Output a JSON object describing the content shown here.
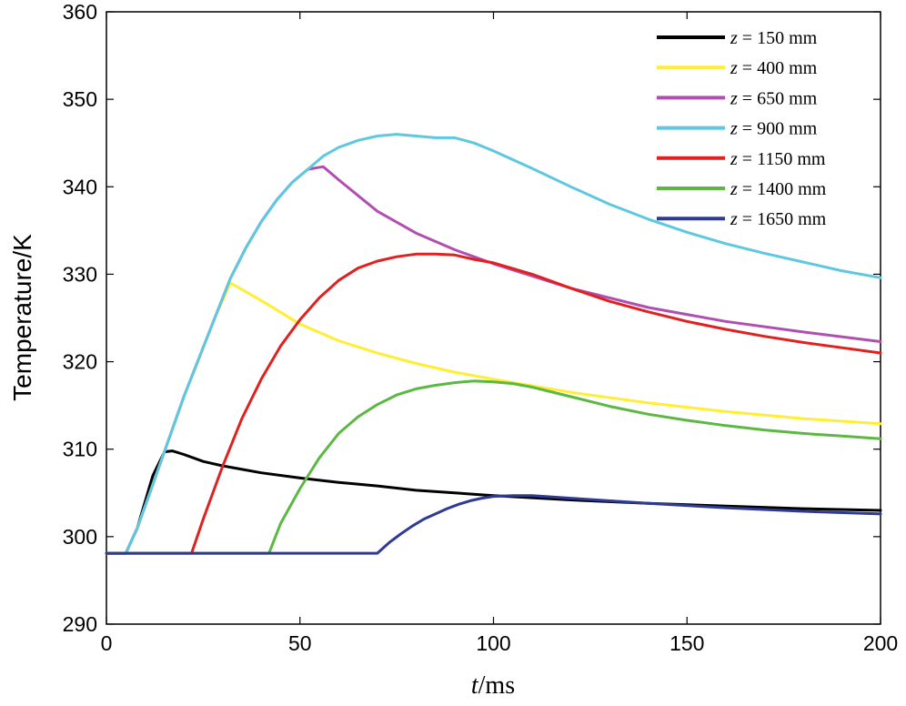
{
  "chart_data": {
    "type": "line",
    "title": "",
    "xlabel_italic": "t",
    "xlabel_rest": "/ms",
    "ylabel": "Temperature/K",
    "xlim": [
      0,
      200
    ],
    "ylim": [
      290,
      360
    ],
    "xticks": [
      0,
      50,
      100,
      150,
      200
    ],
    "yticks": [
      290,
      300,
      310,
      320,
      330,
      340,
      350,
      360
    ],
    "xtick_labels": [
      "0",
      "50",
      "100",
      "150",
      "200"
    ],
    "ytick_labels": [
      "290",
      "300",
      "310",
      "320",
      "330",
      "340",
      "350",
      "360"
    ],
    "grid": false,
    "legend_position": "top-right",
    "series": [
      {
        "name": "z = 150 mm",
        "legend_var": "z",
        "legend_rest": " = 150 mm",
        "color": "#000000",
        "x": [
          0,
          5,
          8,
          12,
          15,
          17,
          20,
          25,
          30,
          40,
          50,
          60,
          70,
          80,
          90,
          100,
          120,
          140,
          160,
          180,
          200
        ],
        "y": [
          298.1,
          298.1,
          301,
          307,
          309.7,
          309.8,
          309.4,
          308.6,
          308.1,
          307.3,
          306.7,
          306.2,
          305.8,
          305.3,
          305,
          304.7,
          304.2,
          303.8,
          303.5,
          303.2,
          303
        ]
      },
      {
        "name": "z = 400 mm",
        "legend_var": "z",
        "legend_rest": " = 400 mm",
        "color": "#ffee33",
        "x": [
          0,
          5,
          8,
          12,
          16,
          20,
          24,
          28,
          32,
          40,
          50,
          60,
          70,
          80,
          90,
          100,
          120,
          140,
          160,
          180,
          200
        ],
        "y": [
          298.1,
          298.1,
          301,
          306,
          311,
          316,
          320.5,
          325,
          329,
          327,
          324.3,
          322.4,
          321,
          319.8,
          318.8,
          318,
          316.5,
          315.3,
          314.3,
          313.5,
          312.9
        ]
      },
      {
        "name": "z = 650 mm",
        "legend_var": "z",
        "legend_rest": " = 650 mm",
        "color": "#b04fb0",
        "x": [
          0,
          5,
          8,
          12,
          16,
          20,
          24,
          28,
          32,
          36,
          40,
          44,
          48,
          52,
          56,
          60,
          70,
          80,
          90,
          100,
          120,
          140,
          160,
          180,
          200
        ],
        "y": [
          298.1,
          298.1,
          301,
          306,
          311,
          316,
          320.5,
          325,
          329.5,
          333,
          336,
          338.5,
          340.5,
          342,
          342.3,
          340.8,
          337.2,
          334.7,
          332.8,
          331.2,
          328.4,
          326.2,
          324.6,
          323.4,
          322.3
        ]
      },
      {
        "name": "z = 900 mm",
        "legend_var": "z",
        "legend_rest": " = 900 mm",
        "color": "#5ec8e0",
        "x": [
          0,
          5,
          8,
          12,
          16,
          20,
          24,
          28,
          32,
          36,
          40,
          44,
          48,
          52,
          56,
          60,
          65,
          70,
          75,
          80,
          85,
          90,
          95,
          100,
          110,
          120,
          130,
          140,
          150,
          160,
          170,
          180,
          190,
          200
        ],
        "y": [
          298.1,
          298.1,
          301,
          306,
          311,
          316,
          320.5,
          325,
          329.5,
          333,
          336,
          338.5,
          340.5,
          342,
          343.5,
          344.5,
          345.3,
          345.8,
          346,
          345.8,
          345.6,
          345.6,
          345,
          344.1,
          342.1,
          340,
          338,
          336.3,
          334.8,
          333.5,
          332.4,
          331.4,
          330.4,
          329.6
        ]
      },
      {
        "name": "z = 1150 mm",
        "legend_var": "z",
        "legend_rest": " = 1150 mm",
        "color": "#e0211f",
        "x": [
          0,
          22,
          25,
          30,
          35,
          40,
          45,
          50,
          55,
          60,
          65,
          70,
          75,
          80,
          85,
          90,
          95,
          100,
          110,
          120,
          130,
          140,
          150,
          160,
          170,
          180,
          190,
          200
        ],
        "y": [
          298.1,
          298.1,
          302,
          308,
          313.5,
          318,
          321.8,
          324.8,
          327.3,
          329.3,
          330.7,
          331.5,
          332,
          332.3,
          332.3,
          332.2,
          331.7,
          331.3,
          330,
          328.4,
          326.9,
          325.7,
          324.6,
          323.7,
          322.9,
          322.2,
          321.6,
          321
        ]
      },
      {
        "name": "z = 1400 mm",
        "legend_var": "z",
        "legend_rest": " = 1400 mm",
        "color": "#5cb842",
        "x": [
          0,
          42,
          45,
          50,
          55,
          60,
          65,
          70,
          75,
          80,
          85,
          90,
          95,
          100,
          105,
          110,
          120,
          130,
          140,
          150,
          160,
          170,
          180,
          190,
          200
        ],
        "y": [
          298.1,
          298.1,
          301.5,
          305.5,
          309,
          311.8,
          313.7,
          315.1,
          316.2,
          316.9,
          317.3,
          317.6,
          317.8,
          317.7,
          317.5,
          317.1,
          316,
          314.9,
          314,
          313.3,
          312.7,
          312.2,
          311.8,
          311.5,
          311.2
        ]
      },
      {
        "name": "z = 1650 mm",
        "legend_var": "z",
        "legend_rest": " = 1650 mm",
        "color": "#2e3a94",
        "x": [
          0,
          70,
          73,
          76,
          79,
          82,
          85,
          88,
          91,
          94,
          97,
          100,
          105,
          110,
          120,
          140,
          160,
          180,
          200
        ],
        "y": [
          298.1,
          298.1,
          299.3,
          300.3,
          301.2,
          302,
          302.6,
          303.2,
          303.7,
          304.1,
          304.4,
          304.6,
          304.7,
          304.7,
          304.4,
          303.8,
          303.3,
          302.9,
          302.6
        ]
      }
    ]
  }
}
